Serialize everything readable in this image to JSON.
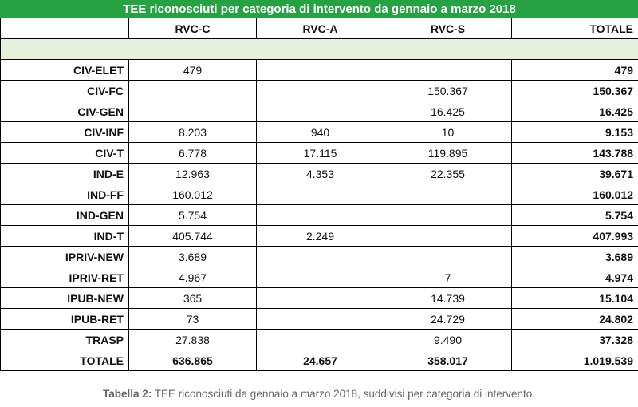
{
  "title": "TEE riconosciuti per categoria di intervento da gennaio a marzo 2018",
  "columns": [
    "",
    "RVC-C",
    "RVC-A",
    "RVC-S",
    "TOTALE"
  ],
  "rows": [
    {
      "cat": "CIV-ELET",
      "c": "479",
      "a": "",
      "s": "",
      "tot": "479"
    },
    {
      "cat": "CIV-FC",
      "c": "",
      "a": "",
      "s": "150.367",
      "tot": "150.367"
    },
    {
      "cat": "CIV-GEN",
      "c": "",
      "a": "",
      "s": "16.425",
      "tot": "16.425"
    },
    {
      "cat": "CIV-INF",
      "c": "8.203",
      "a": "940",
      "s": "10",
      "tot": "9.153"
    },
    {
      "cat": "CIV-T",
      "c": "6.778",
      "a": "17.115",
      "s": "119.895",
      "tot": "143.788"
    },
    {
      "cat": "IND-E",
      "c": "12.963",
      "a": "4.353",
      "s": "22.355",
      "tot": "39.671"
    },
    {
      "cat": "IND-FF",
      "c": "160.012",
      "a": "",
      "s": "",
      "tot": "160.012"
    },
    {
      "cat": "IND-GEN",
      "c": "5.754",
      "a": "",
      "s": "",
      "tot": "5.754"
    },
    {
      "cat": "IND-T",
      "c": "405.744",
      "a": "2.249",
      "s": "",
      "tot": "407.993"
    },
    {
      "cat": "IPRIV-NEW",
      "c": "3.689",
      "a": "",
      "s": "",
      "tot": "3.689"
    },
    {
      "cat": "IPRIV-RET",
      "c": "4.967",
      "a": "",
      "s": "7",
      "tot": "4.974"
    },
    {
      "cat": "IPUB-NEW",
      "c": "365",
      "a": "",
      "s": "14.739",
      "tot": "15.104"
    },
    {
      "cat": "IPUB-RET",
      "c": "73",
      "a": "",
      "s": "24.729",
      "tot": "24.802"
    },
    {
      "cat": "TRASP",
      "c": "27.838",
      "a": "",
      "s": "9.490",
      "tot": "37.328"
    }
  ],
  "total_row": {
    "cat": "TOTALE",
    "c": "636.865",
    "a": "24.657",
    "s": "358.017",
    "tot": "1.019.539"
  },
  "caption": {
    "label": "Tabella 2:",
    "text": " TEE riconosciuti da gennaio a marzo 2018, suddivisi per categoria di intervento."
  },
  "colors": {
    "header_green": "#27a243",
    "spacer_green": "#e8f1dc"
  }
}
